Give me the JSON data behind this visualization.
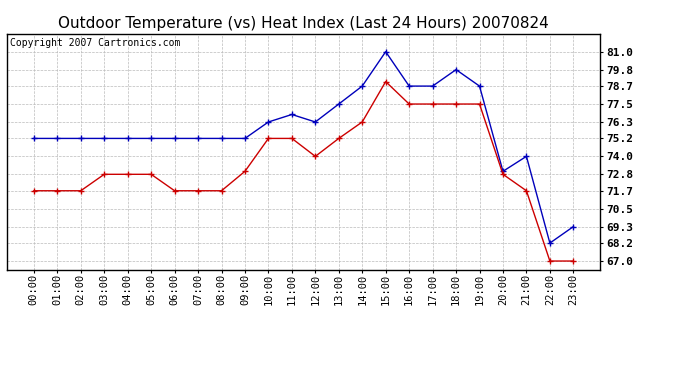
{
  "title": "Outdoor Temperature (vs) Heat Index (Last 24 Hours) 20070824",
  "copyright": "Copyright 2007 Cartronics.com",
  "x_labels": [
    "00:00",
    "01:00",
    "02:00",
    "03:00",
    "04:00",
    "05:00",
    "06:00",
    "07:00",
    "08:00",
    "09:00",
    "10:00",
    "11:00",
    "12:00",
    "13:00",
    "14:00",
    "15:00",
    "16:00",
    "17:00",
    "18:00",
    "19:00",
    "20:00",
    "21:00",
    "22:00",
    "23:00"
  ],
  "blue_data": [
    75.2,
    75.2,
    75.2,
    75.2,
    75.2,
    75.2,
    75.2,
    75.2,
    75.2,
    75.2,
    76.3,
    76.8,
    76.3,
    77.5,
    78.7,
    81.0,
    78.7,
    78.7,
    79.8,
    78.7,
    73.0,
    74.0,
    68.2,
    69.3
  ],
  "red_data": [
    71.7,
    71.7,
    71.7,
    72.8,
    72.8,
    72.8,
    71.7,
    71.7,
    71.7,
    73.0,
    75.2,
    75.2,
    74.0,
    75.2,
    76.3,
    79.0,
    77.5,
    77.5,
    77.5,
    77.5,
    72.8,
    71.7,
    67.0,
    67.0
  ],
  "blue_color": "#0000bb",
  "red_color": "#cc0000",
  "bg_color": "#ffffff",
  "plot_bg_color": "#ffffff",
  "grid_color": "#bbbbbb",
  "ylim_min": 66.4,
  "ylim_max": 82.2,
  "yticks": [
    67.0,
    68.2,
    69.3,
    70.5,
    71.7,
    72.8,
    74.0,
    75.2,
    76.3,
    77.5,
    78.7,
    79.8,
    81.0
  ],
  "title_fontsize": 11,
  "copyright_fontsize": 7,
  "tick_fontsize": 7.5,
  "ytick_fontsize": 8
}
